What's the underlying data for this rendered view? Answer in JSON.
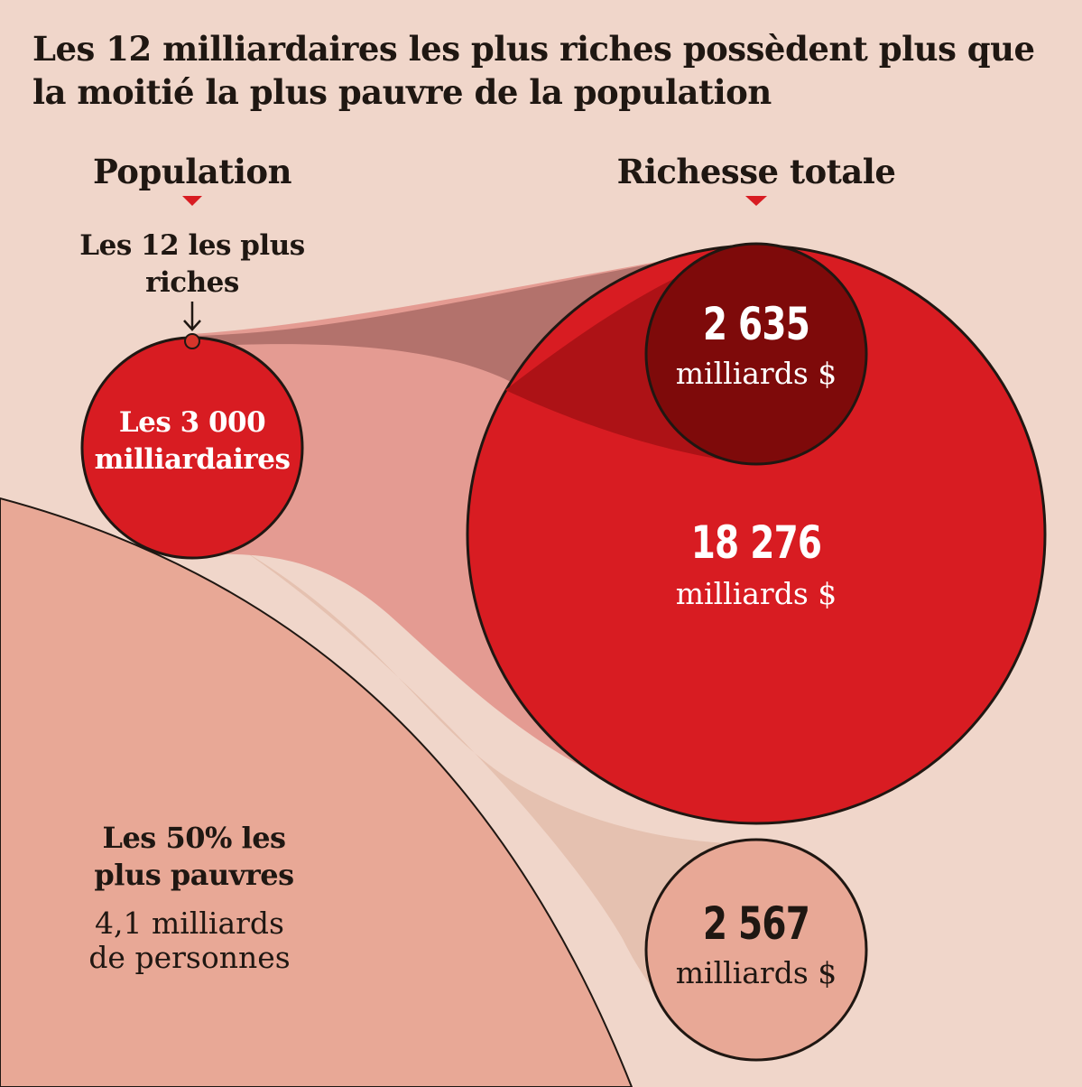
{
  "title": "Les 12 milliardaires les plus riches possèdent plus que la moitié la plus pauvre de la population",
  "columns": {
    "population": "Population",
    "wealth": "Richesse totale"
  },
  "groups": {
    "top12": {
      "label": "Les 12 les plus riches",
      "wealth_value": "2 635",
      "wealth_unit": "milliards $"
    },
    "billionaires": {
      "label": "Les 3 000 milliardaires",
      "wealth_value": "18 276",
      "wealth_unit": "milliards $"
    },
    "poorest_half": {
      "label": "Les 50% les plus pauvres",
      "population_note": "4,1 milliards de personnes",
      "wealth_value": "2 567",
      "wealth_unit": "milliards $"
    }
  },
  "colors": {
    "background": "#f0d6ca",
    "billionaires": "#d81c22",
    "top12": "#7e0a0a",
    "poorest_half": "#e8a896",
    "marker": "#d6352b"
  }
}
